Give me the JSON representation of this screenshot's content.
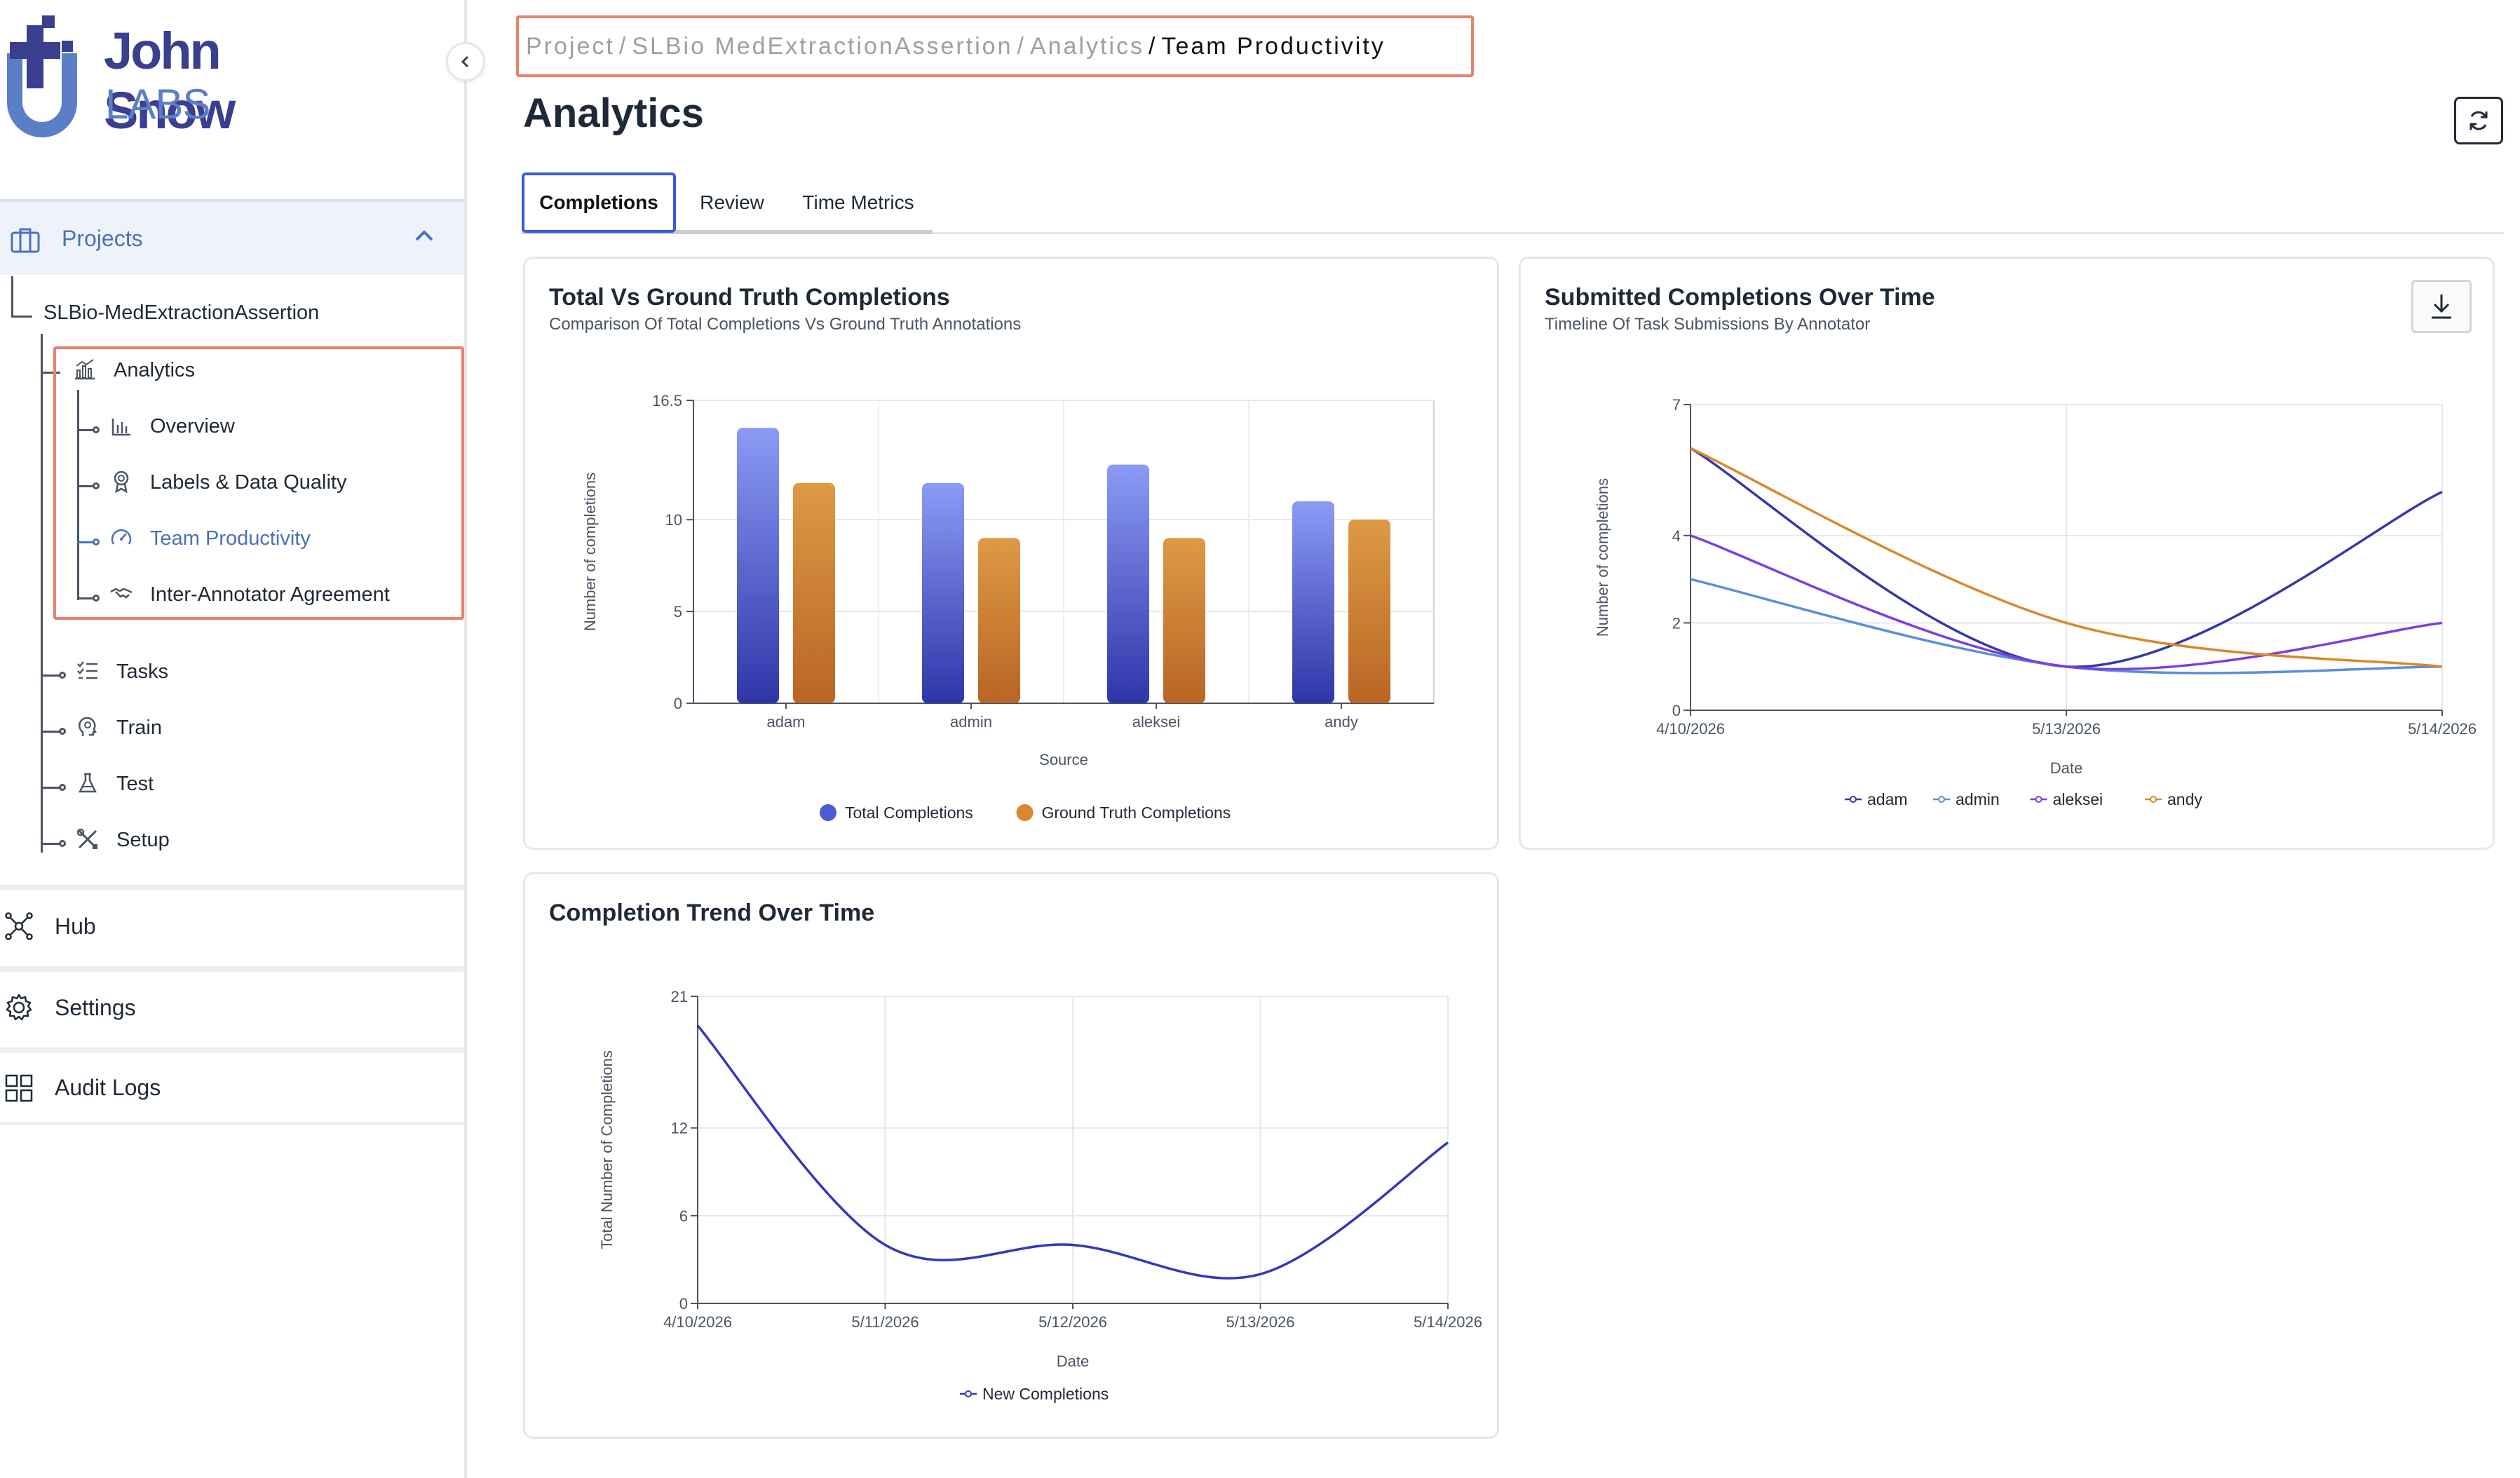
{
  "brand": {
    "line1": "John Snow",
    "line2": "LABS"
  },
  "sidebar": {
    "projects_label": "Projects",
    "project_name": "SLBio-MedExtractionAssertion",
    "analytics": {
      "label": "Analytics",
      "items": [
        {
          "label": "Overview",
          "icon": "bar-chart-icon",
          "active": false
        },
        {
          "label": "Labels & Data Quality",
          "icon": "award-icon",
          "active": false
        },
        {
          "label": "Team Productivity",
          "icon": "gauge-icon",
          "active": true
        },
        {
          "label": "Inter-Annotator Agreement",
          "icon": "handshake-icon",
          "active": false
        }
      ]
    },
    "project_items": [
      {
        "label": "Tasks",
        "icon": "checklist-icon"
      },
      {
        "label": "Train",
        "icon": "brain-icon"
      },
      {
        "label": "Test",
        "icon": "flask-icon"
      },
      {
        "label": "Setup",
        "icon": "tools-icon"
      }
    ],
    "nav": [
      {
        "label": "Hub",
        "icon": "hub-icon"
      },
      {
        "label": "Settings",
        "icon": "gear-icon"
      },
      {
        "label": "Audit Logs",
        "icon": "grid-icon"
      }
    ]
  },
  "breadcrumb": [
    "Project",
    "SLBio MedExtractionAssertion",
    "Analytics",
    "Team Productivity"
  ],
  "page_title": "Analytics",
  "tabs": [
    {
      "label": "Completions",
      "active": true
    },
    {
      "label": "Review",
      "active": false
    },
    {
      "label": "Time Metrics",
      "active": false
    }
  ],
  "colors": {
    "accent": "#3b5bdb",
    "highlight": "#e8826f",
    "series_blue": "#4c5bd4",
    "series_orange": "#d9882f",
    "active_nav": "#4a72b8"
  },
  "chart_data": [
    {
      "type": "bar",
      "title": "Total Vs Ground Truth Completions",
      "subtitle": "Comparison Of Total Completions Vs Ground Truth Annotations",
      "xlabel": "Source",
      "ylabel": "Number of completions",
      "categories": [
        "adam",
        "admin",
        "aleksei",
        "andy"
      ],
      "series": [
        {
          "name": "Total Completions",
          "values": [
            15,
            12,
            13,
            11
          ]
        },
        {
          "name": "Ground Truth Completions",
          "values": [
            12,
            9,
            9,
            10
          ]
        }
      ],
      "yticks": [
        "0",
        "5",
        "10",
        "16.5"
      ],
      "ylim": [
        0,
        16.5
      ],
      "legend": "bottom",
      "grid": true
    },
    {
      "type": "line",
      "title": "Submitted Completions Over Time",
      "subtitle": "Timeline Of Task Submissions By Annotator",
      "xlabel": "Date",
      "ylabel": "Number of completions",
      "x": [
        "4/10/2026",
        "5/13/2026",
        "5/14/2026"
      ],
      "series": [
        {
          "name": "adam",
          "values": [
            6,
            1,
            5
          ]
        },
        {
          "name": "admin",
          "values": [
            3,
            1,
            1
          ]
        },
        {
          "name": "aleksei",
          "values": [
            4,
            1,
            2
          ]
        },
        {
          "name": "andy",
          "values": [
            6,
            2,
            1
          ]
        }
      ],
      "yticks": [
        "0",
        "2",
        "4",
        "7"
      ],
      "ylim": [
        0,
        7
      ],
      "legend": "bottom",
      "grid": true
    },
    {
      "type": "line",
      "title": "Completion Trend Over Time",
      "xlabel": "Date",
      "ylabel": "Total Number of Completions",
      "x": [
        "4/10/2026",
        "5/11/2026",
        "5/12/2026",
        "5/13/2026",
        "5/14/2026"
      ],
      "series": [
        {
          "name": "New Completions",
          "values": [
            19,
            4,
            4,
            2,
            11
          ]
        }
      ],
      "yticks": [
        "0",
        "6",
        "12",
        "21"
      ],
      "ylim": [
        0,
        21
      ],
      "legend": "bottom",
      "grid": true
    }
  ]
}
